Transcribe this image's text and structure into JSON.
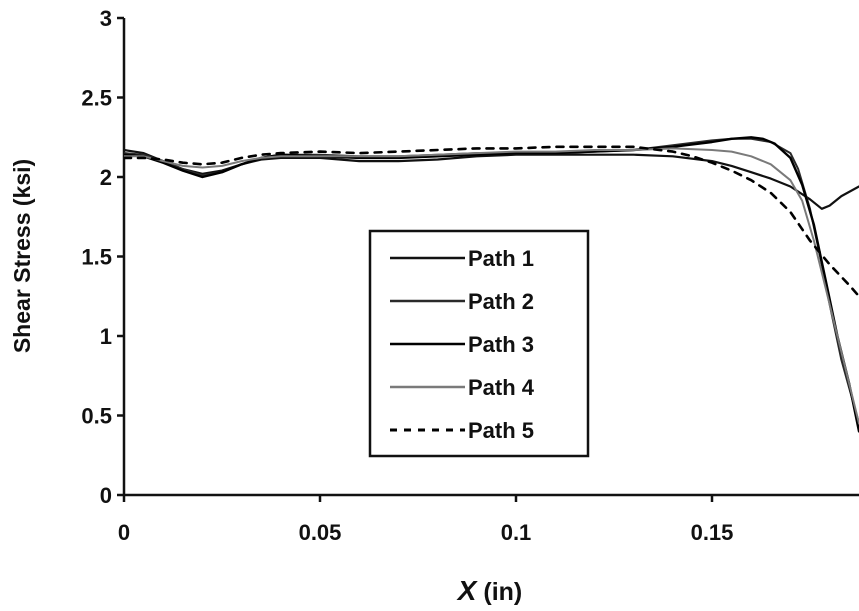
{
  "chart_data": {
    "type": "line",
    "title": "",
    "xlabel": "X (in)",
    "xlabel_var": "X",
    "xlabel_unit": " (in)",
    "ylabel": "Shear Stress (ksi)",
    "xlim": [
      0,
      0.1875
    ],
    "ylim": [
      0,
      3
    ],
    "x_ticks": [
      0,
      0.05,
      0.1,
      0.15
    ],
    "x_tick_labels": [
      "0",
      "0.05",
      "0.1",
      "0.15"
    ],
    "y_ticks": [
      0,
      0.5,
      1,
      1.5,
      2,
      2.5,
      3
    ],
    "y_tick_labels": [
      "0",
      "0.5",
      "1",
      "1.5",
      "2",
      "2.5",
      "3"
    ],
    "grid": false,
    "legend_position": "center",
    "series": [
      {
        "name": "Path 1",
        "color": "#111111",
        "width": 2.2,
        "dash": "",
        "x": [
          0,
          0.005,
          0.01,
          0.015,
          0.02,
          0.025,
          0.03,
          0.035,
          0.04,
          0.05,
          0.06,
          0.07,
          0.08,
          0.09,
          0.1,
          0.11,
          0.12,
          0.13,
          0.14,
          0.15,
          0.155,
          0.16,
          0.165,
          0.17,
          0.175,
          0.178,
          0.18,
          0.183,
          0.1875
        ],
        "y": [
          2.17,
          2.15,
          2.1,
          2.05,
          2.02,
          2.04,
          2.08,
          2.11,
          2.12,
          2.12,
          2.1,
          2.1,
          2.11,
          2.13,
          2.14,
          2.14,
          2.14,
          2.14,
          2.13,
          2.1,
          2.07,
          2.03,
          1.99,
          1.94,
          1.86,
          1.8,
          1.82,
          1.88,
          1.94
        ]
      },
      {
        "name": "Path 2",
        "color": "#2a2a2a",
        "width": 2.0,
        "dash": "",
        "x": [
          0,
          0.005,
          0.01,
          0.015,
          0.02,
          0.025,
          0.03,
          0.035,
          0.04,
          0.05,
          0.06,
          0.07,
          0.08,
          0.09,
          0.1,
          0.11,
          0.12,
          0.13,
          0.14,
          0.15,
          0.155,
          0.16,
          0.165,
          0.17,
          0.172,
          0.175,
          0.178,
          0.18,
          0.183,
          0.1875
        ],
        "y": [
          2.15,
          2.14,
          2.1,
          2.05,
          2.01,
          2.03,
          2.08,
          2.12,
          2.14,
          2.14,
          2.13,
          2.13,
          2.14,
          2.15,
          2.15,
          2.15,
          2.16,
          2.17,
          2.2,
          2.23,
          2.24,
          2.24,
          2.22,
          2.15,
          2.05,
          1.8,
          1.45,
          1.2,
          0.85,
          0.45
        ]
      },
      {
        "name": "Path 3",
        "color": "#000000",
        "width": 2.4,
        "dash": "",
        "x": [
          0,
          0.005,
          0.01,
          0.015,
          0.02,
          0.025,
          0.03,
          0.035,
          0.04,
          0.05,
          0.06,
          0.07,
          0.08,
          0.09,
          0.1,
          0.11,
          0.12,
          0.13,
          0.14,
          0.15,
          0.155,
          0.16,
          0.163,
          0.166,
          0.17,
          0.173,
          0.176,
          0.179,
          0.182,
          0.185,
          0.1875
        ],
        "y": [
          2.14,
          2.13,
          2.09,
          2.04,
          2.0,
          2.03,
          2.08,
          2.12,
          2.14,
          2.13,
          2.12,
          2.12,
          2.13,
          2.14,
          2.15,
          2.15,
          2.16,
          2.17,
          2.19,
          2.22,
          2.24,
          2.25,
          2.24,
          2.21,
          2.12,
          1.95,
          1.7,
          1.35,
          1.0,
          0.7,
          0.4
        ]
      },
      {
        "name": "Path 4",
        "color": "#7a7a7a",
        "width": 2.0,
        "dash": "",
        "x": [
          0,
          0.005,
          0.01,
          0.015,
          0.02,
          0.025,
          0.03,
          0.035,
          0.04,
          0.05,
          0.06,
          0.07,
          0.08,
          0.09,
          0.1,
          0.11,
          0.12,
          0.13,
          0.14,
          0.15,
          0.155,
          0.16,
          0.165,
          0.17,
          0.173,
          0.176,
          0.179,
          0.182,
          0.185,
          0.1875
        ],
        "y": [
          2.13,
          2.13,
          2.1,
          2.07,
          2.06,
          2.07,
          2.1,
          2.12,
          2.13,
          2.13,
          2.13,
          2.13,
          2.14,
          2.15,
          2.16,
          2.16,
          2.17,
          2.17,
          2.18,
          2.17,
          2.16,
          2.13,
          2.08,
          1.98,
          1.85,
          1.6,
          1.3,
          1.0,
          0.7,
          0.45
        ]
      },
      {
        "name": "Path 5",
        "color": "#000000",
        "width": 2.6,
        "dash": "7,7",
        "x": [
          0,
          0.005,
          0.01,
          0.015,
          0.02,
          0.025,
          0.03,
          0.035,
          0.04,
          0.05,
          0.06,
          0.07,
          0.08,
          0.09,
          0.1,
          0.11,
          0.12,
          0.13,
          0.14,
          0.145,
          0.15,
          0.155,
          0.16,
          0.165,
          0.17,
          0.175,
          0.18,
          0.185,
          0.1875
        ],
        "y": [
          2.12,
          2.12,
          2.11,
          2.09,
          2.08,
          2.09,
          2.12,
          2.14,
          2.15,
          2.16,
          2.15,
          2.16,
          2.17,
          2.18,
          2.18,
          2.19,
          2.19,
          2.19,
          2.16,
          2.13,
          2.09,
          2.04,
          1.98,
          1.9,
          1.78,
          1.6,
          1.45,
          1.32,
          1.25
        ]
      }
    ]
  }
}
